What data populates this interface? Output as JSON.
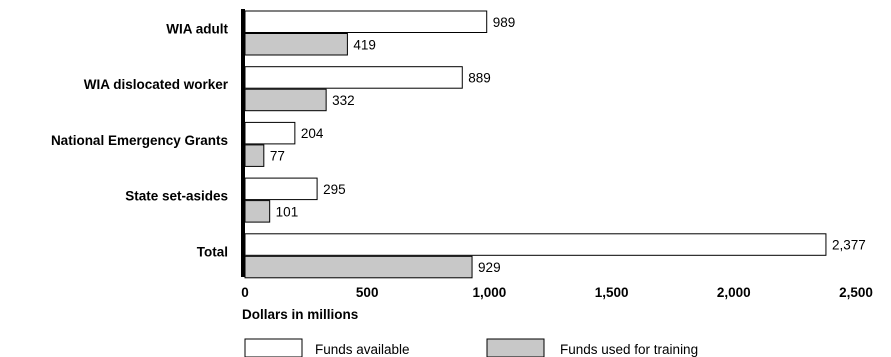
{
  "chart_data": {
    "type": "bar",
    "orientation": "horizontal",
    "categories": [
      "WIA adult",
      "WIA dislocated worker",
      "National Emergency Grants",
      "State set-asides",
      "Total"
    ],
    "series": [
      {
        "name": "Funds available",
        "values": [
          989,
          889,
          204,
          295,
          2377
        ],
        "labels": [
          "989",
          "889",
          "204",
          "295",
          "2,377"
        ],
        "color": "#ffffff"
      },
      {
        "name": "Funds used for training",
        "values": [
          419,
          332,
          77,
          101,
          929
        ],
        "labels": [
          "419",
          "332",
          "77",
          "101",
          "929"
        ],
        "color": "#c8c8c8"
      }
    ],
    "xlabel": "Dollars in millions",
    "xlim": [
      0,
      2500
    ],
    "xticks": [
      0,
      500,
      1000,
      1500,
      2000,
      2500
    ],
    "xtick_labels": [
      "0",
      "500",
      "1,000",
      "1,500",
      "2,000",
      "2,500"
    ],
    "grid": false,
    "legend_position": "bottom"
  }
}
